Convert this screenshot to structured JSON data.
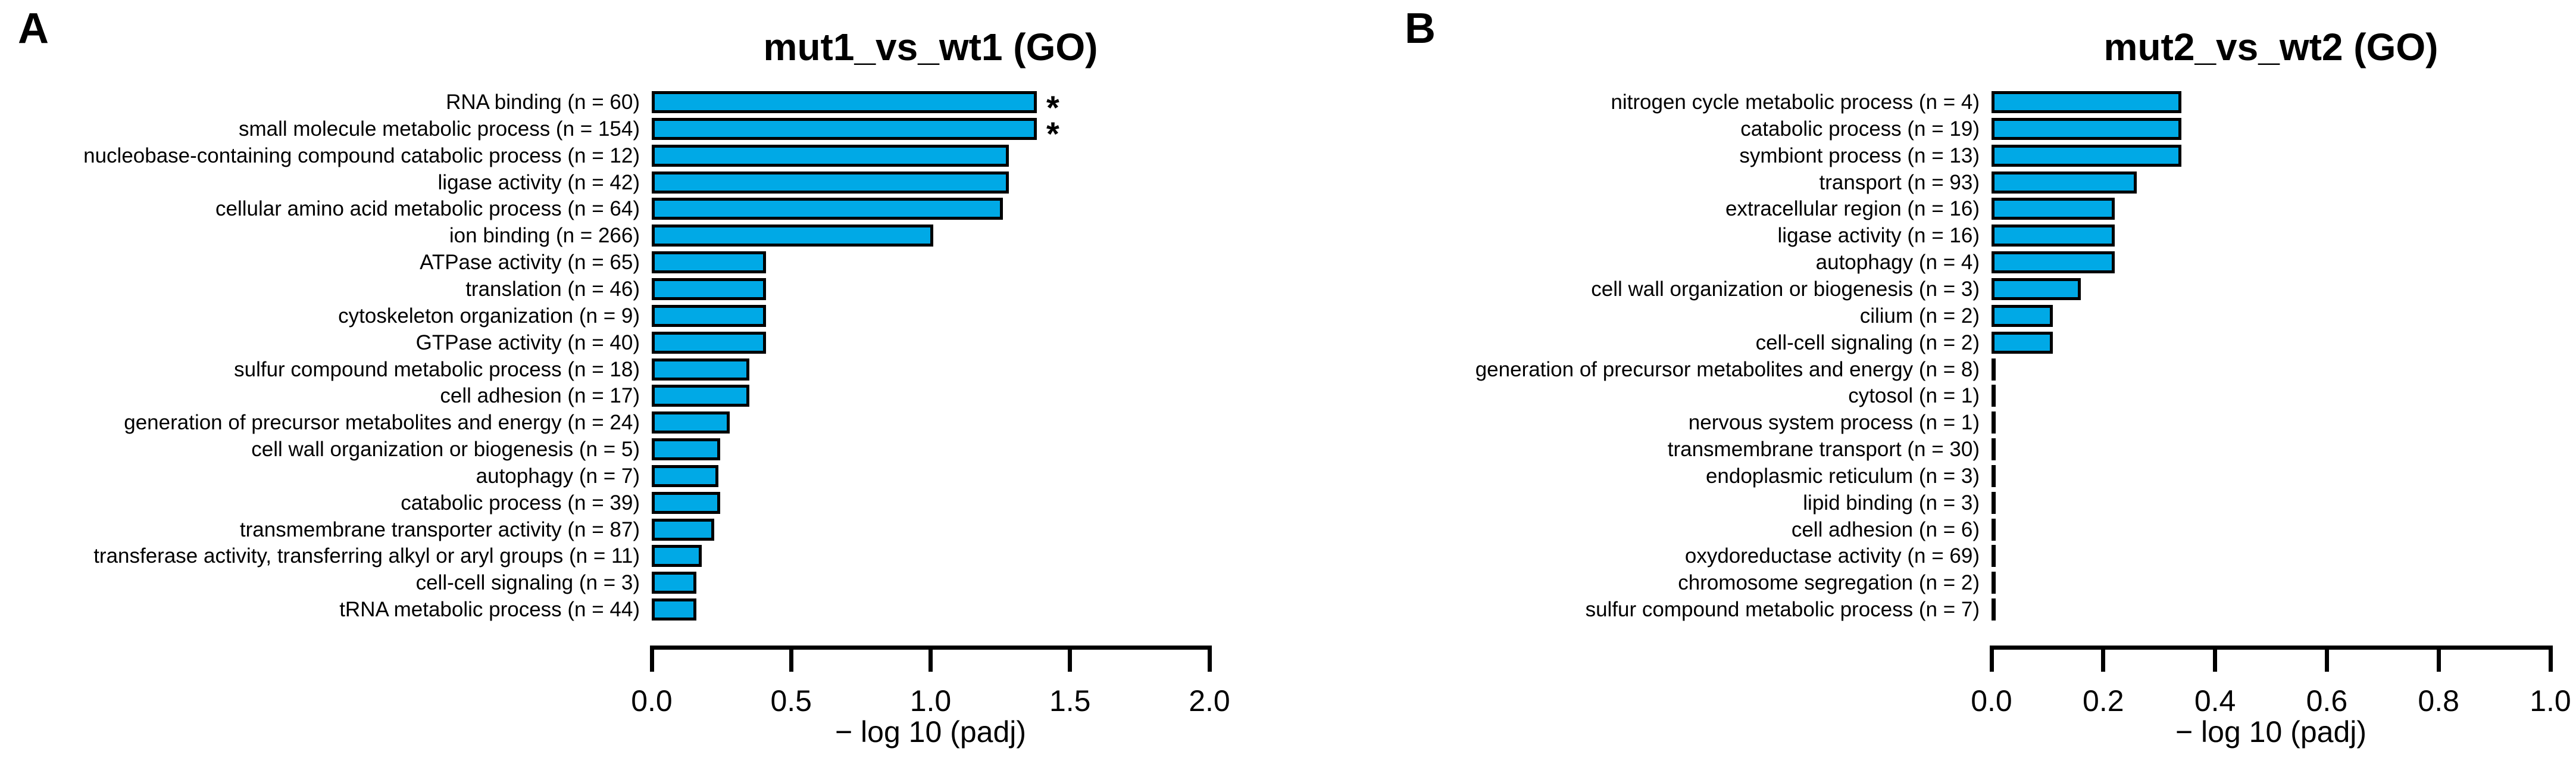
{
  "figure": {
    "background": "#FFFFFF"
  },
  "colors": {
    "bar_fill": "#00A9E6",
    "bar_border": "#000000",
    "axis": "#000000",
    "text": "#000000"
  },
  "chart_data": [
    {
      "type": "bar",
      "orientation": "horizontal",
      "panel_label": "A",
      "title": "mut1_vs_wt1 (GO)",
      "xlabel": "− log 10 (padj)",
      "xlim": [
        0.0,
        2.0
      ],
      "tick_values": [
        0.0,
        0.5,
        1.0,
        1.5,
        2.0
      ],
      "tick_labels": [
        "0.0",
        "0.5",
        "1.0",
        "1.5",
        "2.0"
      ],
      "grid": false,
      "legend": false,
      "categories": [
        "RNA binding (n = 60)",
        "small molecule metabolic process (n = 154)",
        "nucleobase-containing compound catabolic process (n = 12)",
        "ligase activity (n = 42)",
        "cellular amino acid metabolic process (n = 64)",
        "ion binding (n = 266)",
        "ATPase activity (n = 65)",
        "translation (n = 46)",
        "cytoskeleton organization (n = 9)",
        "GTPase activity (n = 40)",
        "sulfur compound metabolic process (n = 18)",
        "cell adhesion (n = 17)",
        "generation of precursor metabolites and energy (n = 24)",
        "cell wall organization or biogenesis (n = 5)",
        "autophagy (n = 7)",
        "catabolic process (n = 39)",
        "transmembrane transporter activity (n = 87)",
        "transferase activity, transferring alkyl or aryl groups (n = 11)",
        "cell-cell signaling (n = 3)",
        "tRNA metabolic process (n = 44)"
      ],
      "values": [
        1.38,
        1.38,
        1.28,
        1.28,
        1.26,
        1.01,
        0.41,
        0.41,
        0.41,
        0.41,
        0.35,
        0.35,
        0.28,
        0.245,
        0.24,
        0.245,
        0.225,
        0.18,
        0.16,
        0.16
      ],
      "annotations": [
        {
          "category_index": 0,
          "text": "*"
        },
        {
          "category_index": 1,
          "text": "*"
        }
      ]
    },
    {
      "type": "bar",
      "orientation": "horizontal",
      "panel_label": "B",
      "title": "mut2_vs_wt2 (GO)",
      "xlabel": "− log 10 (padj)",
      "xlim": [
        0.0,
        1.0
      ],
      "tick_values": [
        0.0,
        0.2,
        0.4,
        0.6,
        0.8,
        1.0
      ],
      "tick_labels": [
        "0.0",
        "0.2",
        "0.4",
        "0.6",
        "0.8",
        "1.0"
      ],
      "grid": false,
      "legend": false,
      "categories": [
        "nitrogen cycle metabolic process (n = 4)",
        "catabolic process (n = 19)",
        "symbiont process (n = 13)",
        "transport (n = 93)",
        "extracellular region (n = 16)",
        "ligase activity (n = 16)",
        "autophagy (n = 4)",
        "cell wall organization or biogenesis (n = 3)",
        "cilium (n = 2)",
        "cell-cell signaling (n = 2)",
        "generation of precursor metabolites and energy (n = 8)",
        "cytosol (n = 1)",
        "nervous system process (n = 1)",
        "transmembrane transport (n = 30)",
        "endoplasmic reticulum (n = 3)",
        "lipid binding (n = 3)",
        "cell adhesion (n = 6)",
        "oxydoreductase activity (n = 69)",
        "chromosome segregation (n = 2)",
        "sulfur compound metabolic process (n = 7)"
      ],
      "values": [
        0.34,
        0.34,
        0.34,
        0.26,
        0.22,
        0.22,
        0.22,
        0.16,
        0.11,
        0.11,
        0.005,
        0.005,
        0.005,
        0.005,
        0.005,
        0.005,
        0.005,
        0.005,
        0.005,
        0.005
      ],
      "annotations": []
    }
  ]
}
